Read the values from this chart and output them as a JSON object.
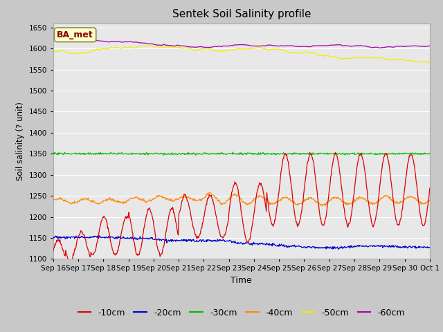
{
  "title": "Sentek Soil Salinity profile",
  "xlabel": "Time",
  "ylabel": "Soil salinity (? unit)",
  "ylim": [
    1100,
    1660
  ],
  "yticks": [
    1100,
    1150,
    1200,
    1250,
    1300,
    1350,
    1400,
    1450,
    1500,
    1550,
    1600,
    1650
  ],
  "legend_labels": [
    "-10cm",
    "-20cm",
    "-30cm",
    "-40cm",
    "-50cm",
    "-60cm"
  ],
  "colors": {
    "-10cm": "#dd0000",
    "-20cm": "#0000cc",
    "-30cm": "#00bb00",
    "-40cm": "#ff8800",
    "-50cm": "#eeee00",
    "-60cm": "#aa00aa"
  },
  "annotation_text": "BA_met",
  "annotation_bg": "#ffffcc",
  "annotation_border": "#888844",
  "annotation_text_color": "#880000",
  "fig_facecolor": "#c8c8c8",
  "plot_facecolor": "#e8e8e8",
  "grid_color": "#ffffff",
  "n_points": 720,
  "days": 15,
  "seed": 12
}
